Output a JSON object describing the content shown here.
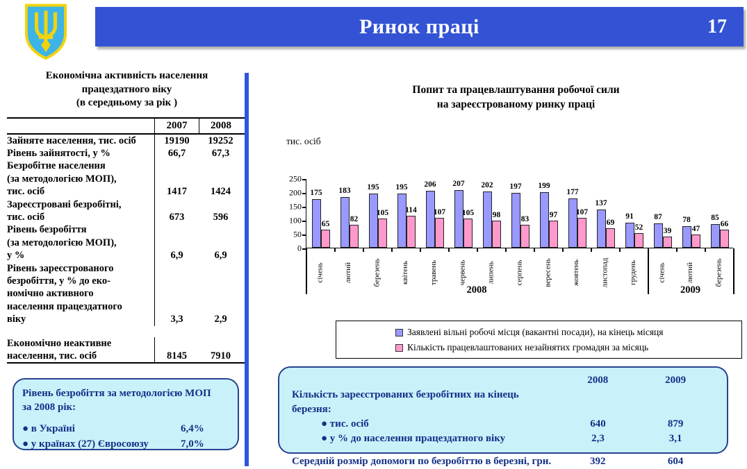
{
  "header": {
    "title": "Ринок праці",
    "page_number": "17",
    "banner_color": "#3353d4",
    "divider_color": "#2e55e0"
  },
  "left_panel": {
    "title_line1": "Економічна активність населення",
    "title_line2": "працездатного віку",
    "title_line3": "(в середньому за рік )",
    "table": {
      "col_headers": [
        "2007",
        "2008"
      ],
      "rows": [
        {
          "label": "Зайняте населення, тис. осіб",
          "v2007": "19190",
          "v2008": "19252"
        },
        {
          "label": "Рівень зайнятості, у %",
          "v2007": "66,7",
          "v2008": "67,3"
        },
        {
          "label": "Безробітне населення\n(за методологією МОП),\nтис. осіб",
          "v2007": "1417",
          "v2008": "1424"
        },
        {
          "label": "Зареєстровані безробітні,\nтис. осіб",
          "v2007": "673",
          "v2008": "596"
        },
        {
          "label": "Рівень безробіття\n(за методологією МОП),\n у %",
          "v2007": "6,9",
          "v2008": "6,9"
        },
        {
          "label": "Рівень зареєстрованого\nбезробіття, у % до еко-\nномічно активного\nнаселення працездатного\nвіку",
          "v2007": "3,3",
          "v2008": "2,9"
        },
        {
          "label": "Економічно неактивне\nнаселення, тис. осіб",
          "v2007": "8145",
          "v2008": "7910",
          "gap_before": true
        }
      ]
    },
    "callout": {
      "title": "Рівень безробіття за методологією МОП\nза   2008 рік:",
      "items": [
        {
          "label": "● в Україні",
          "value": "6,4%"
        },
        {
          "label": "● у країнах (27) Євросоюзу",
          "value": "7,0%"
        }
      ]
    }
  },
  "chart": {
    "title_line1": "Попит та  працевлаштування робочої сили",
    "title_line2": "на зареєстрованому ринку праці",
    "y_axis_label": "тис. осіб"
  },
  "chart_data": {
    "type": "bar",
    "categories": [
      "січень",
      "лютий",
      "березень",
      "квітень",
      "травень",
      "червень",
      "липень",
      "серпень",
      "вересень",
      "жовтень",
      "листопад",
      "грудень",
      "січень",
      "лютий",
      "березень"
    ],
    "year_groups": [
      {
        "label": "2008",
        "span": 12
      },
      {
        "label": "2009",
        "span": 3
      }
    ],
    "series": [
      {
        "name": "Заявлені вільні робочі місця (вакантні посади), на кінець місяця",
        "color": "#9999ff",
        "values": [
          175,
          183,
          195,
          195,
          206,
          207,
          202,
          197,
          199,
          177,
          137,
          91,
          87,
          78,
          85
        ]
      },
      {
        "name": "Кількість працевлаштованих незайнятих громадян за місяць",
        "color": "#ff99cc",
        "values": [
          65,
          82,
          105,
          114,
          107,
          105,
          98,
          83,
          97,
          107,
          69,
          52,
          39,
          47,
          66
        ]
      }
    ],
    "title": "Попит та  працевлаштування робочої сили на зареєстрованому ринку праці",
    "xlabel": "",
    "ylabel": "тис. осіб",
    "ylim": [
      0,
      250
    ],
    "y_ticks": [
      0,
      50,
      100,
      150,
      200,
      250
    ],
    "grid": false,
    "legend_position": "bottom"
  },
  "right_callout": {
    "col_headers": [
      "2008",
      "2009"
    ],
    "rows": [
      {
        "label": "Кількість зареєстрованих безробітних на кінець березня:",
        "v1": "",
        "v2": "",
        "indent": false
      },
      {
        "label": "● тис. осіб",
        "v1": "640",
        "v2": "879",
        "indent": true
      },
      {
        "label": "● у % до населення працездатного віку",
        "v1": "2,3",
        "v2": "3,1",
        "indent": true
      },
      {
        "label": "Середній розмір допомоги по безробіттю в березні, грн.",
        "v1": "392",
        "v2": "604",
        "indent": false,
        "gap_before": true
      }
    ]
  }
}
